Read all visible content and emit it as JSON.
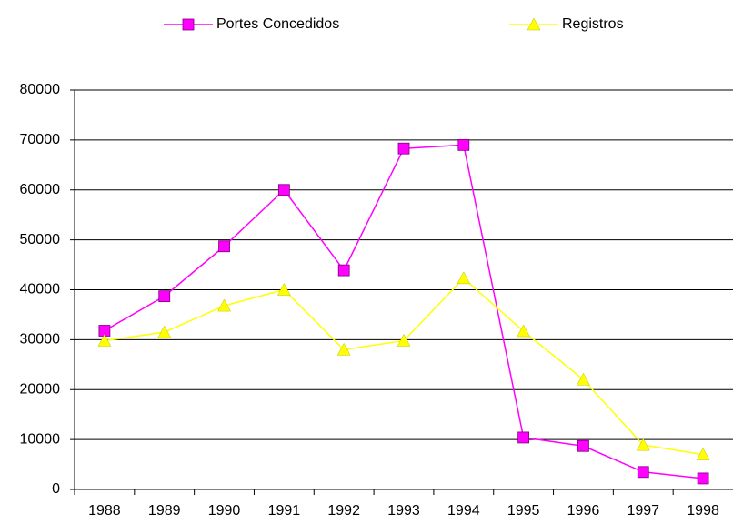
{
  "chart_data": {
    "type": "line",
    "categories": [
      "1988",
      "1989",
      "1990",
      "1991",
      "1992",
      "1993",
      "1994",
      "1995",
      "1996",
      "1997",
      "1998"
    ],
    "series": [
      {
        "name": "Portes Concedidos",
        "color": "#ff00ff",
        "marker": "square",
        "values": [
          31800,
          38700,
          48700,
          60000,
          43900,
          68300,
          69000,
          10400,
          8700,
          3500,
          2200
        ]
      },
      {
        "name": "Registros",
        "color": "#ffff00",
        "marker": "triangle",
        "values": [
          29800,
          31500,
          36800,
          40000,
          28000,
          29800,
          42300,
          31700,
          22000,
          8900,
          7000
        ]
      }
    ],
    "ylim": [
      0,
      80000
    ],
    "yticks": [
      0,
      10000,
      20000,
      30000,
      40000,
      50000,
      60000,
      70000,
      80000
    ],
    "grid": true
  }
}
